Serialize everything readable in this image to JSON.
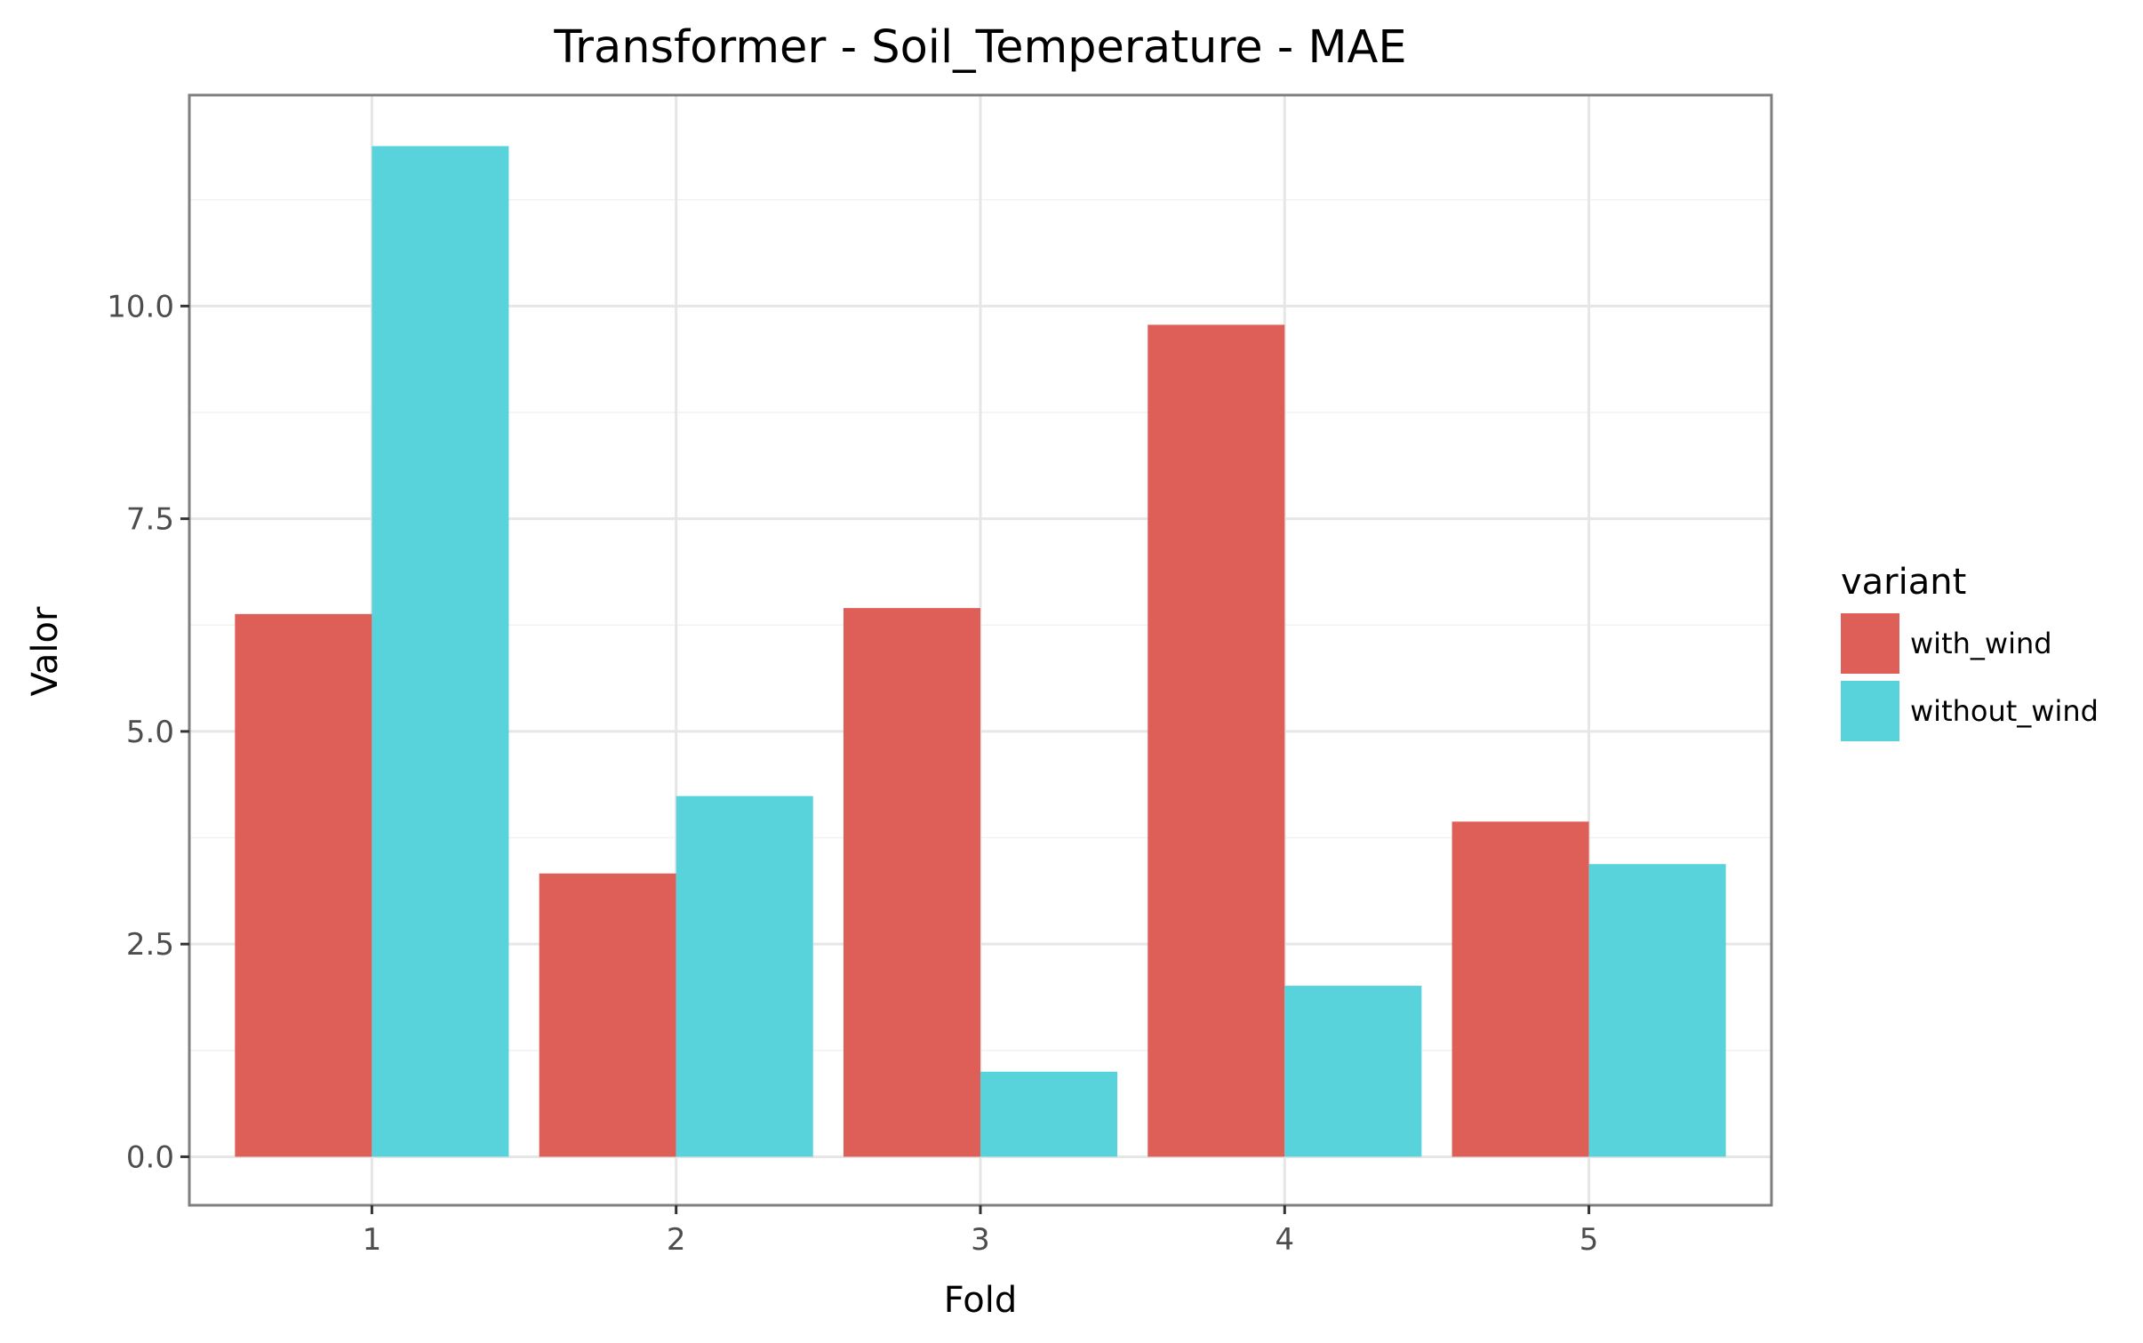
{
  "chart_data": {
    "type": "bar",
    "title": "Transformer - Soil_Temperature - MAE",
    "xlabel": "Fold",
    "ylabel": "Valor",
    "categories": [
      "1",
      "2",
      "3",
      "4",
      "5"
    ],
    "series": [
      {
        "name": "with_wind",
        "color": "#dd5f57",
        "values": [
          6.38,
          3.33,
          6.45,
          9.78,
          3.94
        ]
      },
      {
        "name": "without_wind",
        "color": "#58d3db",
        "values": [
          11.88,
          4.24,
          1.0,
          2.01,
          3.44
        ]
      }
    ],
    "yticks": [
      0.0,
      2.5,
      5.0,
      7.5,
      10.0
    ],
    "ytick_labels": [
      "0.0",
      "2.5",
      "5.0",
      "7.5",
      "10.0"
    ],
    "ylim": [
      -0.57,
      12.48
    ],
    "grid": true,
    "legend": {
      "title": "variant",
      "position": "right"
    }
  }
}
